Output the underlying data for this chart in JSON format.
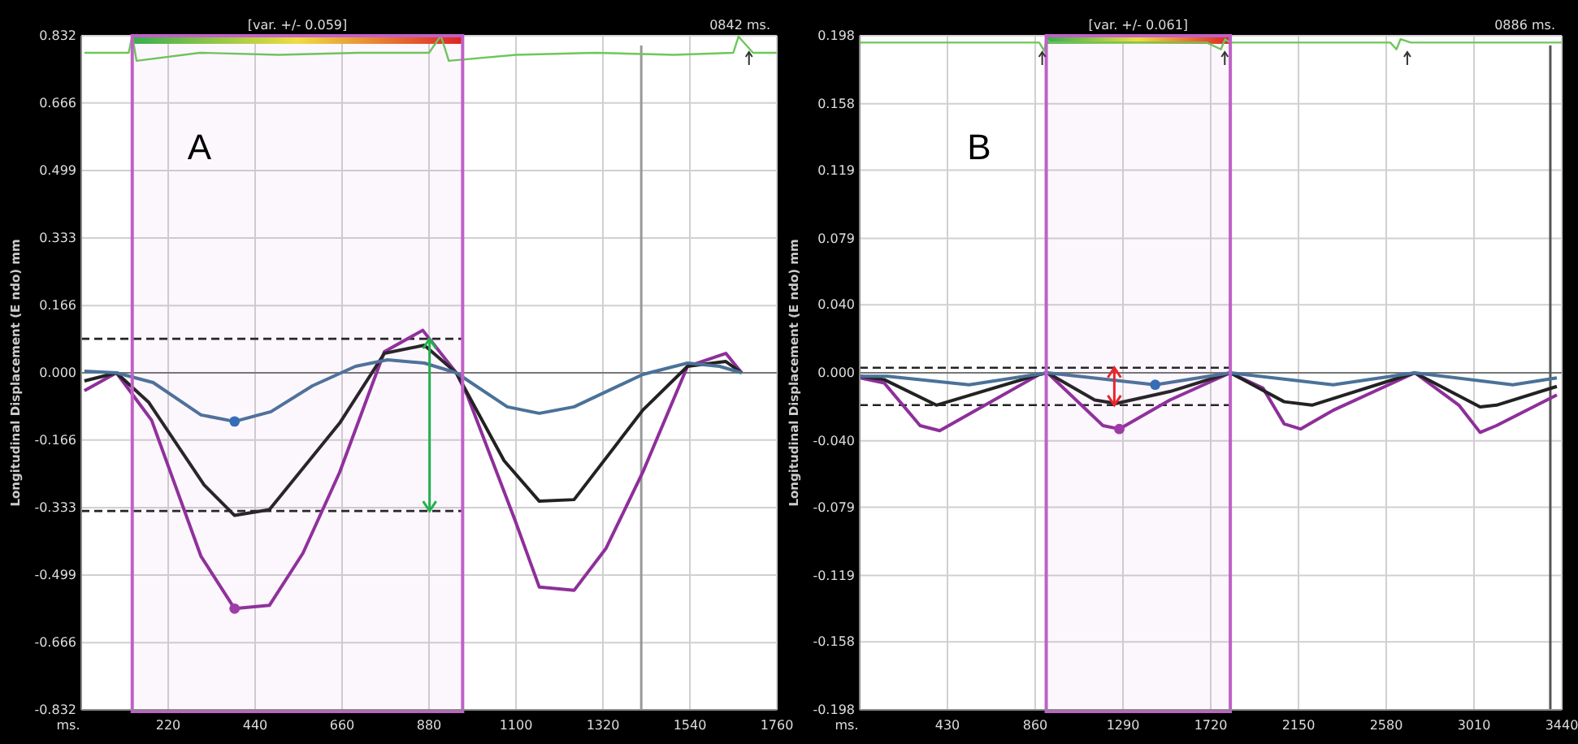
{
  "chart_data": [
    {
      "type": "line",
      "title": "A",
      "xlabel": "ms.",
      "ylabel": "Longitudinal Displacement (E ndo)  mm",
      "annotations": [
        "[var. +/- 0.059]",
        "0842 ms."
      ],
      "xlim": [
        0,
        1760
      ],
      "ylim": [
        -0.832,
        0.832
      ],
      "xticks": [
        220,
        440,
        660,
        880,
        1100,
        1320,
        1540,
        1760
      ],
      "yticks": [
        {
          "value": 0.832,
          "label": "0.832"
        },
        {
          "value": 0.666,
          "label": "0.666"
        },
        {
          "value": 0.499,
          "label": "0.499"
        },
        {
          "value": 0.333,
          "label": "0.333"
        },
        {
          "value": 0.166,
          "label": "0.166"
        },
        {
          "value": 0,
          "label": "0.000"
        },
        {
          "value": -0.166,
          "label": "-0.166"
        },
        {
          "value": -0.333,
          "label": "-0.333"
        },
        {
          "value": -0.499,
          "label": "-0.499"
        },
        {
          "value": -0.666,
          "label": "-0.666"
        },
        {
          "value": -0.832,
          "label": "-0.832"
        }
      ],
      "grid": true,
      "tick_labels": "xy",
      "series": [
        {
          "color": "#6cc85a",
          "x": [
            8,
            120,
            129,
            140,
            300,
            500,
            700,
            880,
            910,
            930,
            1100,
            1300,
            1500,
            1650,
            1663,
            1700,
            1760
          ],
          "values": [
            0.79,
            0.79,
            0.832,
            0.77,
            0.79,
            0.785,
            0.79,
            0.79,
            0.832,
            0.77,
            0.785,
            0.79,
            0.785,
            0.79,
            0.83,
            0.79,
            0.79
          ]
        },
        {
          "color": "#8e2f9a",
          "x": [
            8,
            89,
            178,
            303,
            388,
            476,
            561,
            654,
            767,
            864,
            949,
            977,
            1098,
            1159,
            1247,
            1328,
            1421,
            1534,
            1631,
            1671
          ],
          "values": [
            -0.044,
            0,
            -0.117,
            -0.453,
            -0.582,
            -0.574,
            -0.445,
            -0.245,
            0.052,
            0.105,
            0,
            -0.056,
            -0.365,
            -0.529,
            -0.537,
            -0.433,
            -0.245,
            0.016,
            0.048,
            0
          ]
        },
        {
          "color": "#222222",
          "x": [
            8,
            89,
            170,
            311,
            388,
            476,
            654,
            767,
            868,
            949,
            1070,
            1159,
            1247,
            1421,
            1534,
            1631,
            1671
          ],
          "values": [
            -0.02,
            0,
            -0.072,
            -0.277,
            -0.352,
            -0.338,
            -0.124,
            0.048,
            0.068,
            0,
            -0.217,
            -0.317,
            -0.313,
            -0.092,
            0.016,
            0.028,
            0
          ]
        },
        {
          "color": "#4a7299",
          "x": [
            8,
            89,
            182,
            303,
            388,
            480,
            585,
            694,
            775,
            868,
            949,
            1078,
            1159,
            1247,
            1421,
            1534,
            1615,
            1671
          ],
          "values": [
            0.004,
            0,
            -0.024,
            -0.104,
            -0.12,
            -0.096,
            -0.032,
            0.016,
            0.032,
            0.024,
            0,
            -0.084,
            -0.1,
            -0.084,
            -0.004,
            0.024,
            0.016,
            0
          ]
        },
        {
          "type": "scatter",
          "color": "#2f6fb5",
          "x": [
            388
          ],
          "values": [
            -0.12
          ]
        },
        {
          "type": "scatter",
          "color": "#9b3aa8",
          "x": [
            388
          ],
          "values": [
            -0.582
          ]
        }
      ],
      "ref_lines": [
        {
          "axis": "y",
          "value": 0.084,
          "color": "#222222",
          "line_style": "dashed"
        },
        {
          "axis": "y",
          "value": -0.341,
          "color": "#222222",
          "line_style": "dashed"
        },
        {
          "axis": "x",
          "value": 1417,
          "color": "#999999",
          "line_style": "solid"
        }
      ],
      "bands": [
        {
          "axis": "x",
          "from": 129,
          "to": 965,
          "color": "#c060c8"
        }
      ]
    },
    {
      "type": "line",
      "title": "B",
      "xlabel": "ms.",
      "ylabel": "Longitudinal Displacement (E ndo)  mm",
      "annotations": [
        "[var. +/- 0.061]",
        "0886 ms."
      ],
      "xlim": [
        0,
        3440
      ],
      "ylim": [
        -0.198,
        0.198
      ],
      "xticks": [
        430,
        860,
        1290,
        1720,
        2150,
        2580,
        3010,
        3440
      ],
      "yticks": [
        {
          "value": 0.198,
          "label": "0.198"
        },
        {
          "value": 0.158,
          "label": "0.158"
        },
        {
          "value": 0.119,
          "label": "0.119"
        },
        {
          "value": 0.079,
          "label": "0.079"
        },
        {
          "value": 0.04,
          "label": "0.040"
        },
        {
          "value": 0,
          "label": "0.000"
        },
        {
          "value": -0.04,
          "label": "-0.040"
        },
        {
          "value": -0.079,
          "label": "-0.079"
        },
        {
          "value": -0.119,
          "label": "-0.119"
        },
        {
          "value": -0.158,
          "label": "-0.158"
        },
        {
          "value": -0.198,
          "label": "-0.198"
        }
      ],
      "grid": true,
      "tick_labels": "xy",
      "series": [
        {
          "color": "#6cc85a",
          "x": [
            3,
            300,
            880,
            905,
            914,
            930,
            1200,
            1700,
            1770,
            1790,
            1816,
            2200,
            2600,
            2630,
            2650,
            2700,
            3100,
            3440
          ],
          "values": [
            0.194,
            0.194,
            0.194,
            0.189,
            0.196,
            0.194,
            0.194,
            0.194,
            0.19,
            0.196,
            0.194,
            0.194,
            0.194,
            0.19,
            0.196,
            0.194,
            0.194,
            0.194
          ]
        },
        {
          "color": "#8e2f9a",
          "x": [
            3,
            120,
            296,
            392,
            880,
            920,
            1192,
            1272,
            1520,
            1816,
            1976,
            2080,
            2160,
            2320,
            2720,
            2936,
            3040,
            3120,
            3416
          ],
          "values": [
            -0.003,
            -0.006,
            -0.031,
            -0.034,
            -0.001,
            0,
            -0.031,
            -0.033,
            -0.016,
            0,
            -0.009,
            -0.03,
            -0.033,
            -0.022,
            0,
            -0.019,
            -0.035,
            -0.031,
            -0.013
          ]
        },
        {
          "color": "#222222",
          "x": [
            3,
            120,
            376,
            880,
            920,
            1152,
            1256,
            1520,
            1816,
            2080,
            2216,
            2720,
            3040,
            3120,
            3416
          ],
          "values": [
            -0.002,
            -0.004,
            -0.019,
            -0.001,
            0,
            -0.016,
            -0.018,
            -0.011,
            0,
            -0.017,
            -0.019,
            0,
            -0.02,
            -0.019,
            -0.008
          ]
        },
        {
          "color": "#4a7299",
          "x": [
            3,
            136,
            536,
            920,
            1448,
            1816,
            2320,
            2720,
            3200,
            3416
          ],
          "values": [
            -0.002,
            -0.002,
            -0.007,
            0,
            -0.007,
            0,
            -0.007,
            0,
            -0.007,
            -0.003
          ]
        },
        {
          "type": "scatter",
          "color": "#2f6fb5",
          "x": [
            1448
          ],
          "values": [
            -0.007
          ]
        },
        {
          "type": "scatter",
          "color": "#9b3aa8",
          "x": [
            1272
          ],
          "values": [
            -0.033
          ]
        }
      ],
      "ref_lines": [
        {
          "axis": "y",
          "value": 0.003,
          "color": "#222222",
          "line_style": "dashed"
        },
        {
          "axis": "y",
          "value": -0.019,
          "color": "#222222",
          "line_style": "dashed"
        },
        {
          "axis": "x",
          "value": 3384,
          "color": "#555555",
          "line_style": "solid"
        }
      ],
      "bands": [
        {
          "axis": "x",
          "from": 914,
          "to": 1816,
          "color": "#c060c8"
        }
      ]
    }
  ]
}
